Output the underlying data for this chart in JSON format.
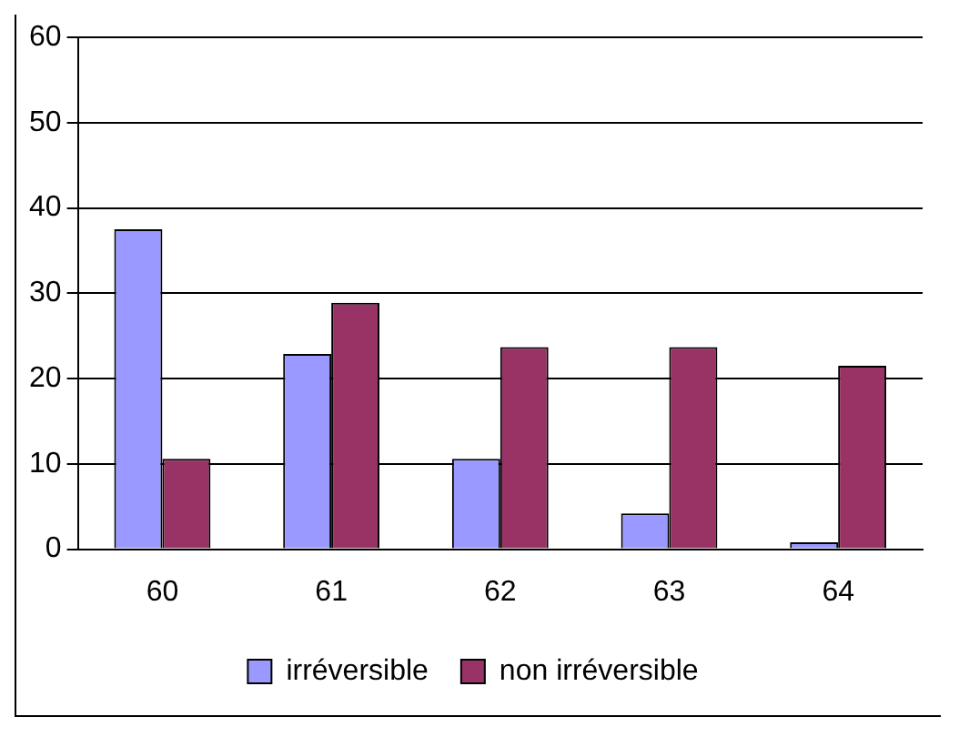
{
  "chart_data": {
    "type": "bar",
    "categories": [
      "60",
      "61",
      "62",
      "63",
      "64"
    ],
    "series": [
      {
        "name": "irréversible",
        "color": "#9999ff",
        "values": [
          37.5,
          22.9,
          10.6,
          4.2,
          0.8
        ]
      },
      {
        "name": "non irréversible",
        "color": "#993366",
        "values": [
          10.6,
          28.9,
          23.7,
          23.7,
          21.5
        ]
      }
    ],
    "ylim": [
      0,
      60
    ],
    "yticks": [
      0,
      10,
      20,
      30,
      40,
      50,
      60
    ],
    "grid": "y",
    "legend": "bottom"
  }
}
